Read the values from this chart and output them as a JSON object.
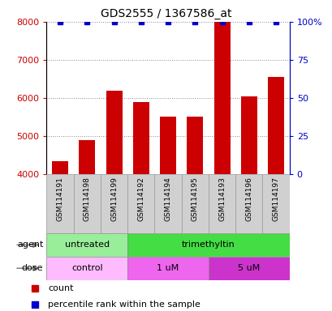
{
  "title": "GDS2555 / 1367586_at",
  "samples": [
    "GSM114191",
    "GSM114198",
    "GSM114199",
    "GSM114192",
    "GSM114194",
    "GSM114195",
    "GSM114193",
    "GSM114196",
    "GSM114197"
  ],
  "counts": [
    4350,
    4900,
    6200,
    5900,
    5500,
    5500,
    8000,
    6050,
    6550
  ],
  "pct_vals": [
    100,
    100,
    100,
    100,
    100,
    100,
    100,
    100,
    100
  ],
  "bar_color": "#cc0000",
  "dot_color": "#0000cc",
  "ylim": [
    4000,
    8000
  ],
  "yticks": [
    4000,
    5000,
    6000,
    7000,
    8000
  ],
  "right_yticks": [
    0,
    25,
    50,
    75,
    100
  ],
  "right_ylabels": [
    "0",
    "25",
    "50",
    "75",
    "100%"
  ],
  "agent_groups": [
    {
      "label": "untreated",
      "start": 0,
      "end": 3,
      "color": "#99ee99"
    },
    {
      "label": "trimethyltin",
      "start": 3,
      "end": 9,
      "color": "#44dd44"
    }
  ],
  "dose_groups": [
    {
      "label": "control",
      "start": 0,
      "end": 3,
      "color": "#ffbbff"
    },
    {
      "label": "1 uM",
      "start": 3,
      "end": 6,
      "color": "#ee66ee"
    },
    {
      "label": "5 uM",
      "start": 6,
      "end": 9,
      "color": "#cc33cc"
    }
  ],
  "legend_count_color": "#cc0000",
  "legend_pct_color": "#0000cc",
  "xlabel_agent": "agent",
  "xlabel_dose": "dose",
  "background_color": "#ffffff",
  "sample_box_color": "#d0d0d0"
}
